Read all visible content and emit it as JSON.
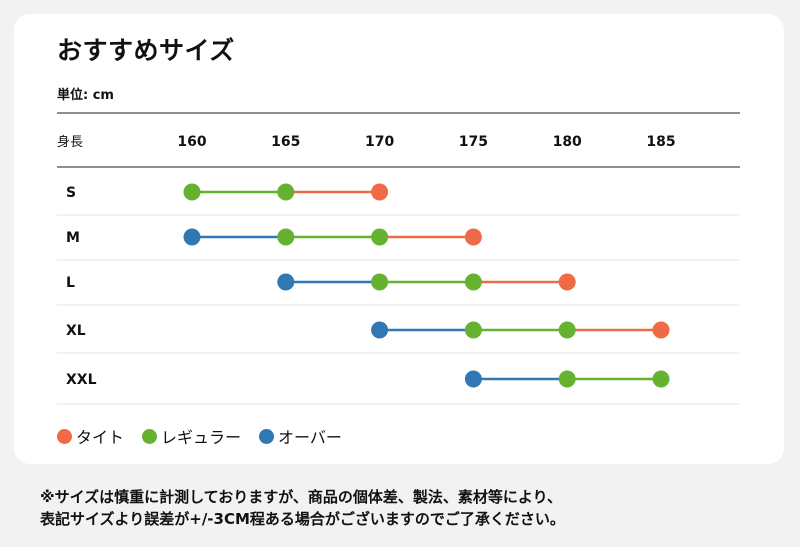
{
  "title": "おすすめサイズ",
  "unit_label": "単位: cm",
  "legend": [
    {
      "key": "tight",
      "label": "タイト",
      "color": "#ef6b45"
    },
    {
      "key": "regular",
      "label": "レギュラー",
      "color": "#64b22f"
    },
    {
      "key": "over",
      "label": "オーバー",
      "color": "#2f78b4"
    }
  ],
  "footnote": [
    "※サイズは慎重に計測しておりますが、商品の個体差、製法、素材等により、",
    "表記サイズより誤差が+/-3CM程ある場合がございますのでご了承ください。"
  ],
  "chart_data": {
    "type": "dot-range",
    "x_axis_label": "身長",
    "ticks": [
      160,
      165,
      170,
      175,
      180,
      185
    ],
    "rows": [
      {
        "size": "S",
        "points": [
          {
            "x": 160,
            "type": "regular"
          },
          {
            "x": 165,
            "type": "regular"
          },
          {
            "x": 170,
            "type": "tight"
          }
        ]
      },
      {
        "size": "M",
        "points": [
          {
            "x": 160,
            "type": "over"
          },
          {
            "x": 165,
            "type": "regular"
          },
          {
            "x": 170,
            "type": "regular"
          },
          {
            "x": 175,
            "type": "tight"
          }
        ]
      },
      {
        "size": "L",
        "points": [
          {
            "x": 165,
            "type": "over"
          },
          {
            "x": 170,
            "type": "regular"
          },
          {
            "x": 175,
            "type": "regular"
          },
          {
            "x": 180,
            "type": "tight"
          }
        ]
      },
      {
        "size": "XL",
        "points": [
          {
            "x": 170,
            "type": "over"
          },
          {
            "x": 175,
            "type": "regular"
          },
          {
            "x": 180,
            "type": "regular"
          },
          {
            "x": 185,
            "type": "tight"
          }
        ]
      },
      {
        "size": "XXL",
        "points": [
          {
            "x": 175,
            "type": "over"
          },
          {
            "x": 180,
            "type": "regular"
          },
          {
            "x": 185,
            "type": "regular"
          }
        ]
      }
    ]
  }
}
